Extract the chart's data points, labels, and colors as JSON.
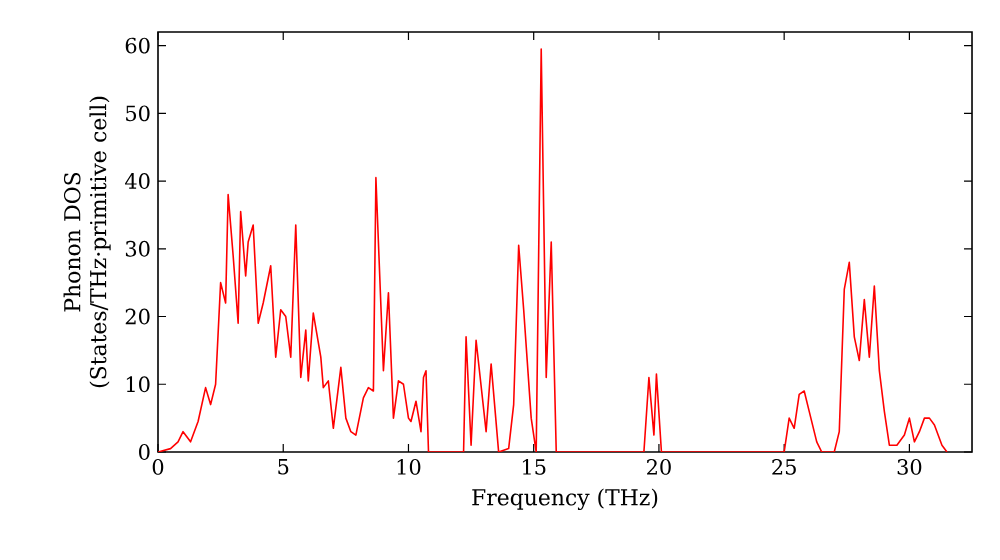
{
  "chart_data": {
    "type": "line",
    "xlabel": "Frequency (THz)",
    "ylabel": "Phonon DOS (States/THz·primitive cell)",
    "xlim": [
      0,
      32.5
    ],
    "ylim": [
      0,
      62
    ],
    "xticks": [
      0,
      5,
      10,
      15,
      20,
      25,
      30
    ],
    "yticks": [
      0,
      10,
      20,
      30,
      40,
      50,
      60
    ],
    "grid": false,
    "marker": "none",
    "line_style": "solid",
    "series": [
      {
        "color": "#ff0000",
        "x": [
          0,
          0.5,
          0.8,
          1.0,
          1.3,
          1.6,
          1.9,
          2.1,
          2.3,
          2.5,
          2.7,
          2.8,
          3.0,
          3.2,
          3.3,
          3.5,
          3.6,
          3.8,
          4.0,
          4.2,
          4.5,
          4.7,
          4.9,
          5.1,
          5.3,
          5.5,
          5.7,
          5.9,
          6.0,
          6.2,
          6.5,
          6.6,
          6.8,
          7.0,
          7.3,
          7.5,
          7.7,
          7.9,
          8.2,
          8.4,
          8.6,
          8.7,
          9.0,
          9.2,
          9.4,
          9.6,
          9.8,
          10.0,
          10.1,
          10.3,
          10.5,
          10.6,
          10.7,
          10.8,
          12.2,
          12.3,
          12.5,
          12.7,
          13.1,
          13.3,
          13.6,
          14.0,
          14.2,
          14.4,
          14.6,
          14.9,
          15.1,
          15.3,
          15.5,
          15.7,
          15.9,
          19.4,
          19.6,
          19.8,
          19.9,
          20.1,
          25.0,
          25.2,
          25.4,
          25.6,
          25.8,
          26.0,
          26.3,
          26.5,
          27.0,
          27.2,
          27.4,
          27.6,
          27.8,
          28.0,
          28.2,
          28.4,
          28.6,
          28.8,
          29.0,
          29.2,
          29.5,
          29.8,
          30.0,
          30.2,
          30.4,
          30.6,
          30.8,
          31.0,
          31.3,
          31.5
        ],
        "values": [
          0,
          0.5,
          1.5,
          3,
          1.5,
          4.5,
          9.5,
          7,
          10,
          25,
          22,
          38,
          29,
          19,
          35.5,
          26,
          31,
          33.5,
          19,
          22,
          27.5,
          14,
          21,
          20,
          14,
          33.5,
          11,
          18,
          10.5,
          20.5,
          14,
          9.5,
          10.5,
          3.5,
          12.5,
          5,
          3,
          2.5,
          8,
          9.5,
          9,
          40.5,
          12,
          23.5,
          5,
          10.5,
          10,
          5,
          4.5,
          7.5,
          3,
          11,
          12,
          0,
          0,
          17,
          1,
          16.5,
          3,
          13,
          0,
          0.5,
          7,
          30.5,
          21,
          5,
          0,
          59.5,
          11,
          31,
          0,
          0,
          11,
          2.5,
          11.5,
          0,
          0,
          5,
          3.5,
          8.5,
          9,
          6,
          1.5,
          0,
          0,
          3,
          24,
          28,
          17,
          13.5,
          22.5,
          14,
          24.5,
          12,
          6,
          1,
          1,
          2.5,
          5,
          1.5,
          3,
          5,
          5,
          4,
          1,
          0
        ]
      }
    ]
  }
}
